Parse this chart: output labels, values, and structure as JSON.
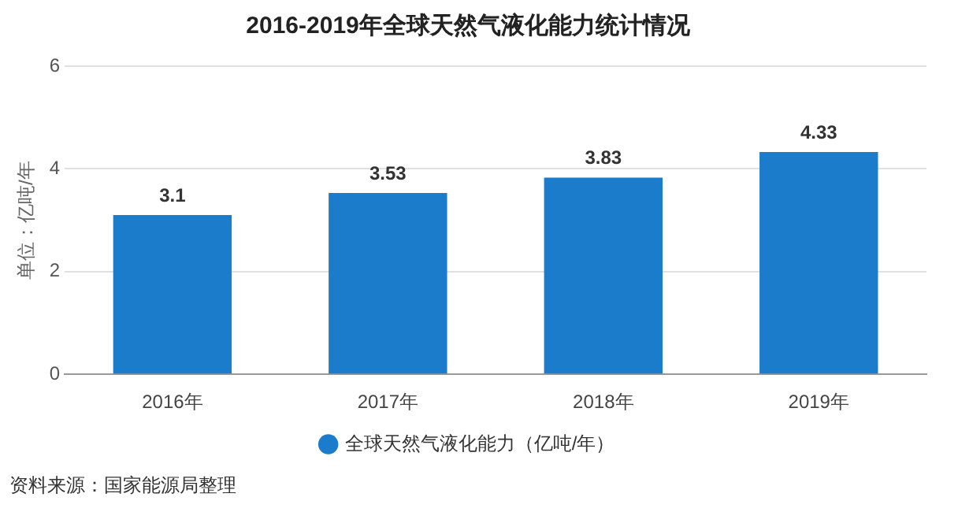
{
  "chart_data": {
    "type": "bar",
    "title": "2016-2019年全球天然气液化能力统计情况",
    "ylabel": "单位：亿吨/年",
    "categories": [
      "2016年",
      "2017年",
      "2018年",
      "2019年"
    ],
    "series": [
      {
        "name": "全球天然气液化能力（亿吨/年）",
        "color": "#1b7ccc",
        "values": [
          3.1,
          3.53,
          3.83,
          4.33
        ]
      }
    ],
    "ylim": [
      0,
      6
    ],
    "yticks": [
      0,
      2,
      4,
      6
    ],
    "grid": "y",
    "legend": "bottom",
    "data_labels": true,
    "annotations": [
      "资料来源：国家能源局整理"
    ]
  }
}
